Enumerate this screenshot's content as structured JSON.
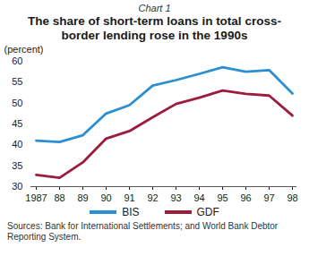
{
  "chart_data": {
    "type": "line",
    "chart_number": "Chart 1",
    "title": "The share of short-term loans in total cross-border lending rose in the 1990s",
    "y_label": "(percent)",
    "source": "Sources: Bank for International Settlements; and World Bank Debtor Reporting System.",
    "categories": [
      "1987",
      "88",
      "89",
      "90",
      "91",
      "92",
      "93",
      "94",
      "95",
      "96",
      "97",
      "98"
    ],
    "series": [
      {
        "name": "BIS",
        "color": "#2b8fd1",
        "values": [
          41,
          40.7,
          42.3,
          47.5,
          49.5,
          54.2,
          55.5,
          57,
          58.6,
          57.5,
          57.9,
          52.3
        ]
      },
      {
        "name": "GDF",
        "color": "#9c1c3c",
        "values": [
          32.8,
          32.1,
          35.8,
          41.5,
          43.3,
          46.6,
          49.8,
          51.3,
          53,
          52.2,
          51.8,
          47
        ]
      }
    ],
    "ylim": [
      30,
      60
    ],
    "yticks": [
      30,
      35,
      40,
      45,
      50,
      55,
      60
    ],
    "grid": false,
    "legend": "bottom"
  }
}
